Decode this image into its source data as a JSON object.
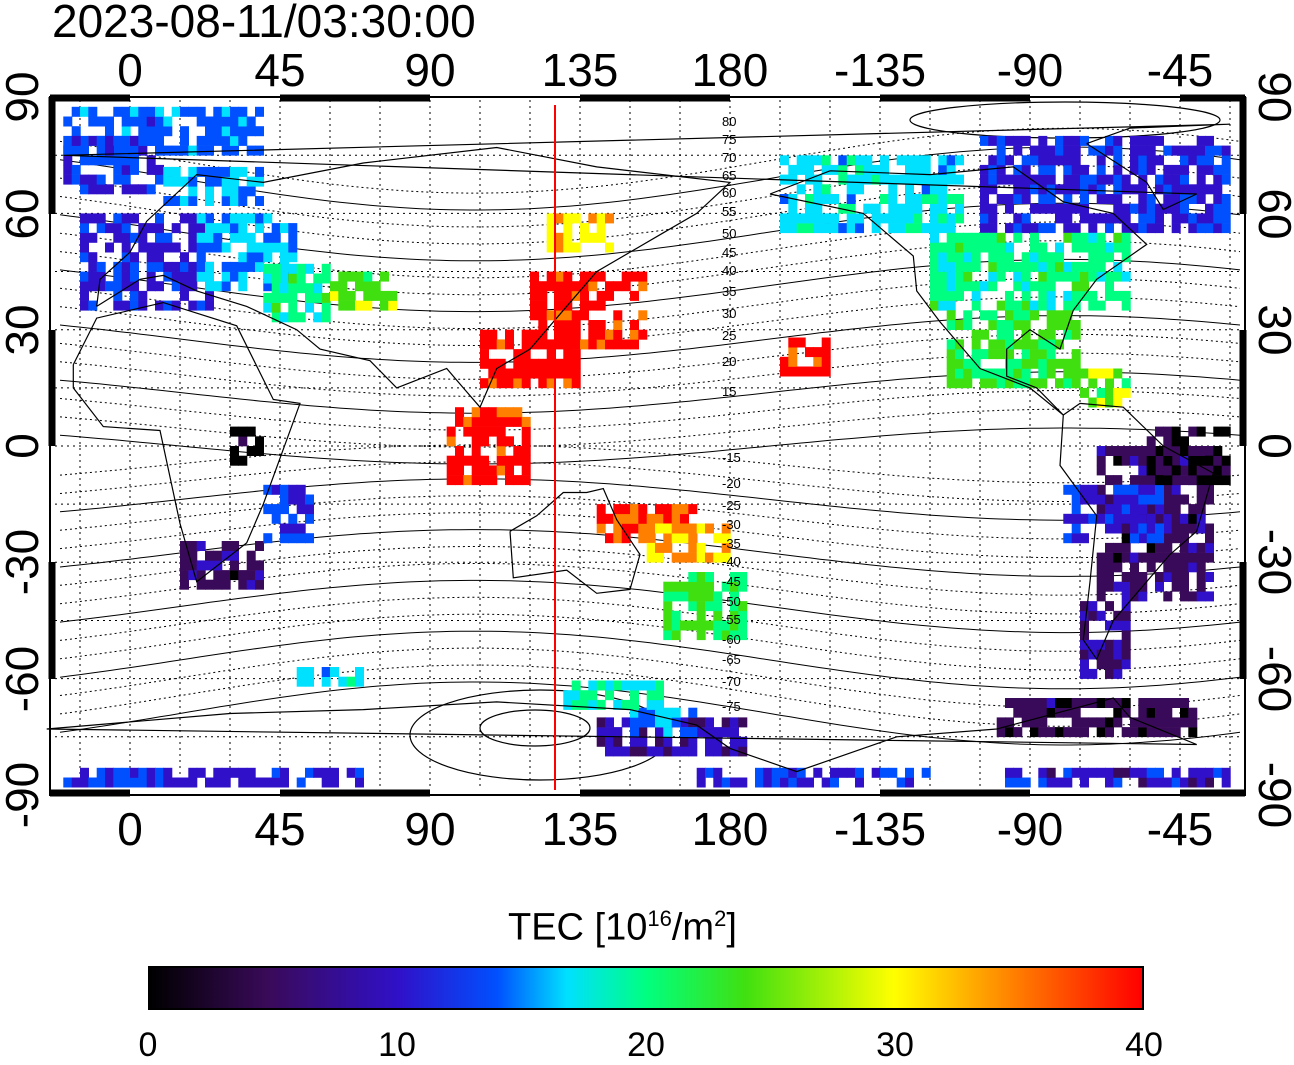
{
  "title": "2023-08-11/03:30:00",
  "x_axis": {
    "tick_labels": [
      "0",
      "45",
      "90",
      "135",
      "180",
      "-135",
      "-90",
      "-45"
    ]
  },
  "y_axis": {
    "tick_labels": [
      "90",
      "60",
      "30",
      "0",
      "-30",
      "-60",
      "-90"
    ]
  },
  "magnetic_latitude_labels": [
    "80",
    "75",
    "70",
    "65",
    "60",
    "55",
    "50",
    "45",
    "40",
    "35",
    "30",
    "25",
    "20",
    "15",
    "-15",
    "-20",
    "-25",
    "-30",
    "-35",
    "-40",
    "-45",
    "-50",
    "-55",
    "-60",
    "-65",
    "-70",
    "-75"
  ],
  "colorbar": {
    "title_prefix": "TEC  [10",
    "title_sup1": "16",
    "title_mid": "/m",
    "title_sup2": "2",
    "title_suffix": "]",
    "tick_labels": [
      "0",
      "10",
      "20",
      "30",
      "40"
    ],
    "min": 0,
    "max": 40,
    "colors": [
      "#000000",
      "#3a0a5a",
      "#3010c8",
      "#0050ff",
      "#00e0ff",
      "#00ff80",
      "#40e010",
      "#ffff00",
      "#ff8000",
      "#ff0000"
    ]
  },
  "noon_meridian_color": "#ff0000",
  "map_projection": "equirectangular, longitude range -25 to 335, latitude -90 to 90",
  "tec_regions": [
    {
      "name": "arctic-europe",
      "value": 14
    },
    {
      "name": "europe",
      "value": 11
    },
    {
      "name": "east-asia",
      "value": 40
    },
    {
      "name": "north-america",
      "value": 24
    },
    {
      "name": "south-america-east",
      "value": 5
    },
    {
      "name": "southern-africa",
      "value": 5
    },
    {
      "name": "new-zealand",
      "value": 28
    },
    {
      "name": "antarctica-pacific",
      "value": 3
    }
  ]
}
